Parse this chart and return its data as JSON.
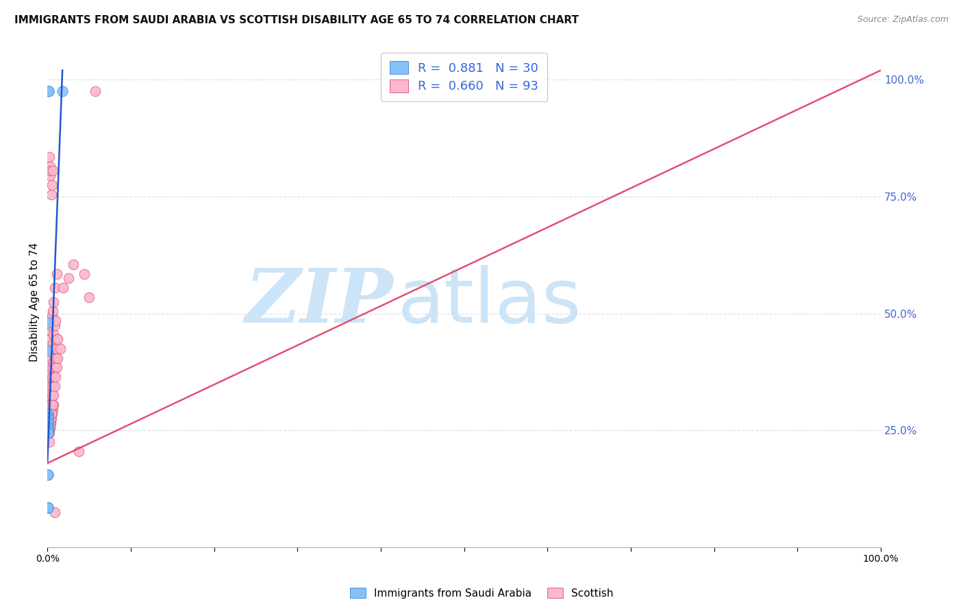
{
  "title": "IMMIGRANTS FROM SAUDI ARABIA VS SCOTTISH DISABILITY AGE 65 TO 74 CORRELATION CHART",
  "source": "Source: ZipAtlas.com",
  "ylabel": "Disability Age 65 to 74",
  "legend_entries": [
    {
      "label": "R =  0.881   N = 30",
      "color": "#a8c8f8"
    },
    {
      "label": "R =  0.660   N = 93",
      "color": "#f8b8c8"
    }
  ],
  "legend_label_color": "#3366dd",
  "watermark_zip": "ZIP",
  "watermark_atlas": "atlas",
  "watermark_color": "#cce4f7",
  "saudi_scatter_x": [
    0.0008,
    0.001,
    0.0012,
    0.0015,
    0.0008,
    0.0006,
    0.0004,
    0.0006,
    0.0008,
    0.001,
    0.0006,
    0.0008,
    0.0006,
    0.0005,
    0.0006,
    0.0007,
    0.001,
    0.0012,
    0.0006,
    0.0004,
    0.0006,
    0.0006,
    0.0004,
    0.0003,
    0.0008,
    0.0005,
    0.001,
    0.0006,
    0.0005,
    0.018
  ],
  "saudi_scatter_y": [
    0.48,
    0.42,
    0.975,
    0.975,
    0.285,
    0.285,
    0.28,
    0.275,
    0.275,
    0.27,
    0.265,
    0.265,
    0.26,
    0.255,
    0.255,
    0.255,
    0.255,
    0.255,
    0.25,
    0.25,
    0.25,
    0.245,
    0.245,
    0.155,
    0.155,
    0.085,
    0.085,
    0.085,
    0.085,
    0.975
  ],
  "saudi_color": "#85c0f9",
  "saudi_edge_color": "#4a90d9",
  "scottish_scatter_x": [
    0.001,
    0.0015,
    0.002,
    0.003,
    0.0025,
    0.0035,
    0.004,
    0.005,
    0.006,
    0.007,
    0.0015,
    0.002,
    0.0025,
    0.003,
    0.0035,
    0.004,
    0.005,
    0.0055,
    0.006,
    0.0065,
    0.002,
    0.003,
    0.0035,
    0.004,
    0.005,
    0.0055,
    0.006,
    0.0075,
    0.009,
    0.011,
    0.0025,
    0.003,
    0.0035,
    0.004,
    0.005,
    0.0055,
    0.006,
    0.0075,
    0.0085,
    0.01,
    0.003,
    0.0035,
    0.004,
    0.005,
    0.0055,
    0.006,
    0.0075,
    0.0085,
    0.0095,
    0.011,
    0.0035,
    0.004,
    0.005,
    0.0055,
    0.006,
    0.0075,
    0.0085,
    0.0095,
    0.011,
    0.0125,
    0.004,
    0.005,
    0.0055,
    0.006,
    0.0075,
    0.0085,
    0.0095,
    0.011,
    0.0125,
    0.0155,
    0.002,
    0.0025,
    0.003,
    0.0035,
    0.004,
    0.005,
    0.019,
    0.025,
    0.031,
    0.038,
    0.0015,
    0.002,
    0.0025,
    0.003,
    0.0035,
    0.004,
    0.005,
    0.0055,
    0.006,
    0.009,
    0.044,
    0.05,
    0.057
  ],
  "scottish_scatter_y": [
    0.285,
    0.275,
    0.265,
    0.255,
    0.255,
    0.265,
    0.275,
    0.285,
    0.295,
    0.305,
    0.305,
    0.315,
    0.325,
    0.335,
    0.345,
    0.355,
    0.365,
    0.375,
    0.385,
    0.4,
    0.425,
    0.445,
    0.465,
    0.475,
    0.485,
    0.495,
    0.505,
    0.525,
    0.555,
    0.585,
    0.355,
    0.365,
    0.375,
    0.385,
    0.405,
    0.425,
    0.435,
    0.455,
    0.475,
    0.485,
    0.305,
    0.325,
    0.335,
    0.345,
    0.365,
    0.385,
    0.395,
    0.405,
    0.425,
    0.445,
    0.285,
    0.295,
    0.305,
    0.325,
    0.345,
    0.365,
    0.385,
    0.405,
    0.425,
    0.445,
    0.265,
    0.275,
    0.285,
    0.305,
    0.325,
    0.345,
    0.365,
    0.385,
    0.405,
    0.425,
    0.225,
    0.245,
    0.255,
    0.265,
    0.275,
    0.285,
    0.555,
    0.575,
    0.605,
    0.205,
    0.805,
    0.835,
    0.805,
    0.815,
    0.795,
    0.805,
    0.755,
    0.775,
    0.805,
    0.075,
    0.585,
    0.535,
    0.975
  ],
  "scottish_color": "#f9b8cc",
  "scottish_edge_color": "#e06080",
  "saudi_line_x": [
    0.0,
    0.018
  ],
  "saudi_line_y": [
    0.18,
    1.02
  ],
  "saudi_line_color": "#2255cc",
  "scottish_line_x": [
    0.0,
    1.0
  ],
  "scottish_line_y": [
    0.18,
    1.02
  ],
  "scottish_line_color": "#e05070",
  "bg_color": "#ffffff",
  "grid_color": "#dde0ea",
  "title_color": "#111111",
  "right_axis_color": "#4466cc",
  "xlim": [
    0.0,
    1.0
  ],
  "ylim": [
    0.0,
    1.05
  ]
}
